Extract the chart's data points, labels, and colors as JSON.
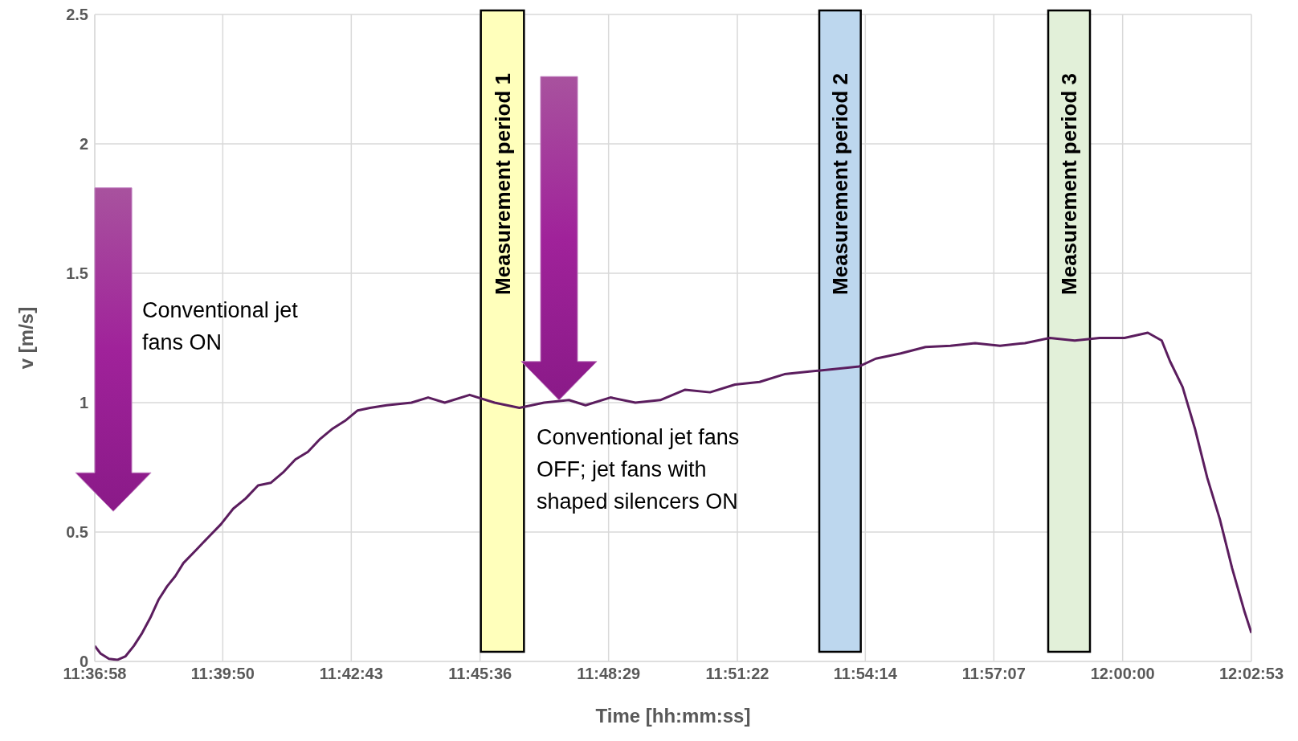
{
  "chart_data": {
    "type": "line",
    "xlabel": "Time [hh:mm:ss]",
    "ylabel": "v [m/s]",
    "xlim": [
      11.6161,
      12.0481
    ],
    "ylim": [
      0,
      2.5
    ],
    "xticks": [
      {
        "value": 11.6161,
        "label": "11:36:58"
      },
      {
        "value": 11.6639,
        "label": "11:39:50"
      },
      {
        "value": 11.7119,
        "label": "11:42:43"
      },
      {
        "value": 11.76,
        "label": "11:45:36"
      },
      {
        "value": 11.808,
        "label": "11:48:29"
      },
      {
        "value": 11.8561,
        "label": "11:51:22"
      },
      {
        "value": 11.9039,
        "label": "11:54:14"
      },
      {
        "value": 11.9519,
        "label": "11:57:07"
      },
      {
        "value": 12,
        "label": "12:00:00"
      },
      {
        "value": 12.0481,
        "label": "12:02:53"
      }
    ],
    "yticks": [
      0,
      0.5,
      1,
      1.5,
      2,
      2.5
    ],
    "grid": true,
    "marker": "none",
    "line_style": "solid",
    "x": [
      11.6161,
      11.6183,
      11.6214,
      11.6245,
      11.6276,
      11.6307,
      11.6338,
      11.6369,
      11.64,
      11.6431,
      11.6462,
      11.6492,
      11.6539,
      11.6585,
      11.6632,
      11.6678,
      11.6725,
      11.6771,
      11.6818,
      11.6864,
      11.691,
      11.6957,
      11.7003,
      11.705,
      11.7096,
      11.7143,
      11.7189,
      11.7251,
      11.7344,
      11.7406,
      11.7468,
      11.7561,
      11.7654,
      11.7747,
      11.7839,
      11.7932,
      11.7994,
      11.8087,
      11.818,
      11.8273,
      11.8366,
      11.8459,
      11.8552,
      11.8644,
      11.8737,
      11.883,
      11.8923,
      11.9016,
      11.9078,
      11.9171,
      11.9264,
      11.9357,
      11.9449,
      11.9542,
      11.9635,
      11.9728,
      11.9821,
      11.9914,
      12.0007,
      12.0094,
      12.0146,
      12.0177,
      12.0224,
      12.027,
      12.0316,
      12.0363,
      12.0409,
      12.0456,
      12.0481
    ],
    "series": [
      {
        "color": "#5b1d5e",
        "values": [
          0.06,
          0.03,
          0.01,
          0.006,
          0.02,
          0.06,
          0.11,
          0.17,
          0.24,
          0.29,
          0.33,
          0.38,
          0.43,
          0.48,
          0.53,
          0.59,
          0.63,
          0.68,
          0.69,
          0.73,
          0.78,
          0.81,
          0.86,
          0.9,
          0.93,
          0.97,
          0.98,
          0.99,
          1,
          1.02,
          1,
          1.03,
          1,
          0.98,
          1,
          1.01,
          0.99,
          1.02,
          1,
          1.01,
          1.05,
          1.04,
          1.07,
          1.08,
          1.11,
          1.12,
          1.13,
          1.14,
          1.17,
          1.19,
          1.215,
          1.22,
          1.23,
          1.22,
          1.23,
          1.25,
          1.24,
          1.25,
          1.25,
          1.27,
          1.24,
          1.16,
          1.06,
          0.9,
          0.71,
          0.55,
          0.36,
          0.19,
          0.11
        ]
      }
    ],
    "bands": [
      {
        "axis": "x",
        "from": 11.7603,
        "to": 11.7764,
        "label": "Measurement period 1",
        "color": "#ffffbb"
      },
      {
        "axis": "x",
        "from": 11.8867,
        "to": 11.9022,
        "label": "Measurement period 2",
        "color": "#bdd7ee"
      },
      {
        "axis": "x",
        "from": 11.9722,
        "to": 11.9878,
        "label": "Measurement period 3",
        "color": "#e2f0d9"
      }
    ],
    "annotations": [
      "Conventional jet fans ON",
      "Conventional jet fans OFF; jet fans with shaped silencers ON"
    ]
  }
}
